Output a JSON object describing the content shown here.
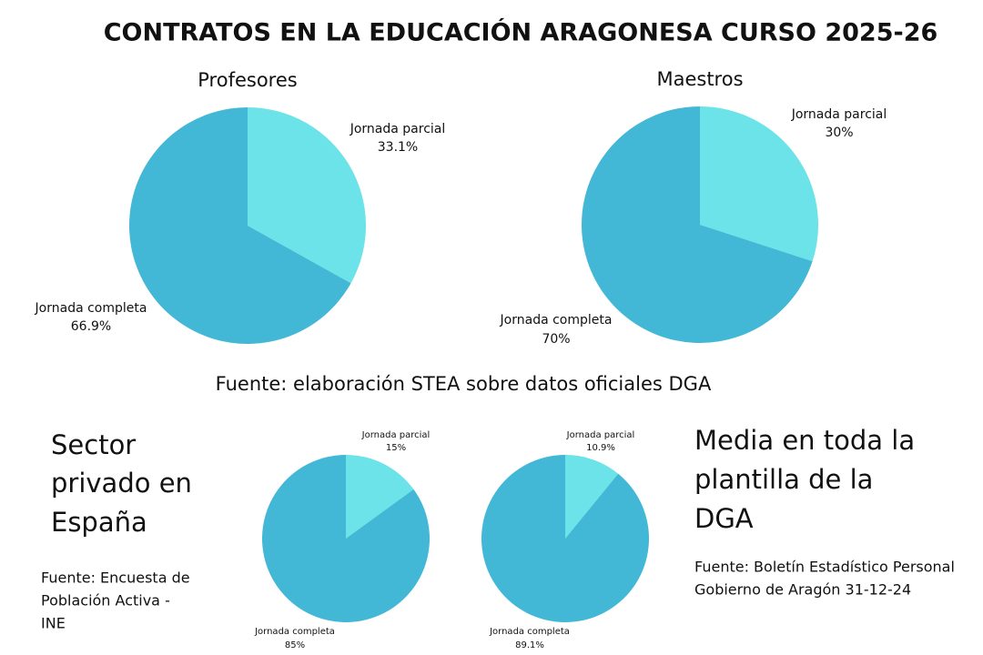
{
  "title": "CONTRATOS EN LA EDUCACIÓN ARAGONESA CURSO 2025-26",
  "chart_data": [
    {
      "type": "pie",
      "title": "Profesores",
      "categories": [
        "Jornada parcial",
        "Jornada completa"
      ],
      "values": [
        33.1,
        66.9
      ],
      "value_labels": [
        "33.1%",
        "66.9%"
      ],
      "colors": [
        "#6ce3e8",
        "#43b7d6"
      ]
    },
    {
      "type": "pie",
      "title": "Maestros",
      "categories": [
        "Jornada parcial",
        "Jornada completa"
      ],
      "values": [
        30,
        70
      ],
      "value_labels": [
        "30%",
        "70%"
      ],
      "colors": [
        "#6ce3e8",
        "#43b7d6"
      ]
    },
    {
      "type": "pie",
      "categories": [
        "Jornada parcial",
        "Jornada completa"
      ],
      "values": [
        15,
        85
      ],
      "value_labels": [
        "15%",
        "85%"
      ],
      "colors": [
        "#6ce3e8",
        "#43b7d6"
      ]
    },
    {
      "type": "pie",
      "categories": [
        "Jornada parcial",
        "Jornada completa"
      ],
      "values": [
        10.9,
        89.1
      ],
      "value_labels": [
        "10.9%",
        "89.1%"
      ],
      "colors": [
        "#6ce3e8",
        "#43b7d6"
      ]
    }
  ],
  "source_top": "Fuente: elaboración STEA sobre datos oficiales DGA",
  "left_heading": [
    "Sector",
    "privado en",
    "España"
  ],
  "left_source": [
    "Fuente:  Encuesta de",
    "Población Activa -",
    "INE"
  ],
  "right_heading": [
    "Media en toda la",
    "plantilla de la",
    "DGA"
  ],
  "right_source": [
    "Fuente: Boletín Estadístico Personal",
    "Gobierno de Aragón 31-12-24"
  ]
}
